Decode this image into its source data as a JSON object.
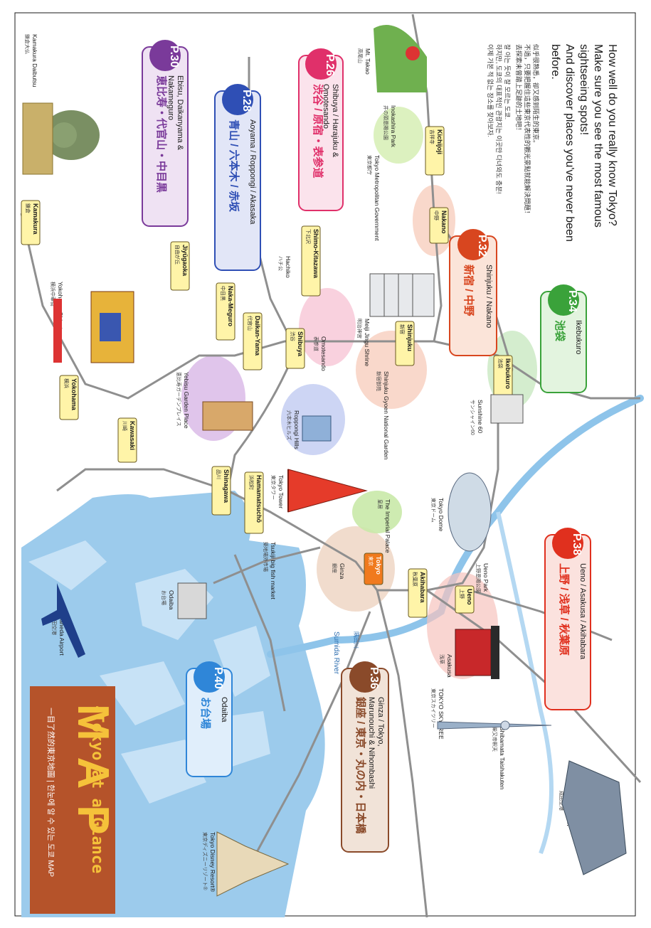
{
  "intro": {
    "lines": [
      "How well do you really know Tokyo?",
      "Make sure you see the most famous",
      "sightseeing spots!",
      "And discover places you've never been",
      "before."
    ],
    "zh_lines": [
      "似乎很熟悉，卻又感到陌生的東京。",
      "不過，只要把握住這些東京代表性的觀光景點就能解決問題！",
      "去探索未曾踏上足跡的土地吧！"
    ],
    "ko_lines": [
      "잘 아는 듯이 잘 모르는 도쿄.",
      "하지만, 도쿄의 대표적인 관광지는 이곳만 다녀와도 충분!",
      "이제 가본 적 없는 장소를 찾아보자."
    ]
  },
  "title_block": {
    "title": "M A P",
    "subtitle": "-Tokyo at a Glance",
    "caption": "一目了然的東京地圖 | 한눈에 알 수 있는 도쿄 MAP",
    "bg_color": "#b5532a",
    "title_color": "#f5c23a"
  },
  "areas": [
    {
      "page": "P.26",
      "en": [
        "Shibuya / Harajuku &",
        "Omotesando"
      ],
      "jp": "渋谷 / 原宿・表参道",
      "color": "#e0306a",
      "fill": "#fbe3ec"
    },
    {
      "page": "P.28",
      "en": [
        "Aoyama / Roppongi / Akasaka"
      ],
      "jp": "青山 / 六本木 / 赤坂",
      "color": "#2f4fb5",
      "fill": "#e2e6f7"
    },
    {
      "page": "P.30",
      "en": [
        "Ebisu, Daikanyama &",
        "Nakameguro"
      ],
      "jp": "恵比寿・代官山・中目黒",
      "color": "#7a3a9a",
      "fill": "#efe2f3"
    },
    {
      "page": "P.32",
      "en": [
        "Shinjuku / Nakano"
      ],
      "jp": "新宿 / 中野",
      "color": "#d8461f",
      "fill": "#fbe4d9"
    },
    {
      "page": "P.34",
      "en": [
        "Ikebukuro"
      ],
      "jp": "池袋",
      "color": "#3aa23a",
      "fill": "#e3f4df"
    },
    {
      "page": "P.38",
      "en": [
        "Ueno / Asakusa / Akihabara"
      ],
      "jp": "上野 / 浅草 / 秋葉原",
      "color": "#e0301e",
      "fill": "#fbe2de"
    },
    {
      "page": "P.36",
      "en": [
        "Ginza / Tokyo,",
        "Marunouchi & Nihombashi"
      ],
      "jp": "銀座 / 東京・丸の内・日本橋",
      "color": "#8a4a2a",
      "fill": "#f1e3d8"
    },
    {
      "page": "P.40",
      "en": [
        "Odaiba"
      ],
      "jp": "お台場",
      "color": "#2f86d8",
      "fill": "#e0eefb"
    }
  ],
  "stations": [
    {
      "en": "Kichijoji",
      "jp": "吉祥寺"
    },
    {
      "en": "Nakano",
      "jp": "中野"
    },
    {
      "en": "Shimo-Kitazawa",
      "jp": "下北沢"
    },
    {
      "en": "Shinjuku",
      "jp": "新宿"
    },
    {
      "en": "Ikebukuro",
      "jp": "池袋"
    },
    {
      "en": "Shibuya",
      "jp": "渋谷"
    },
    {
      "en": "Daikan-Yama",
      "jp": "代官山"
    },
    {
      "en": "Naka-Meguro",
      "jp": "中目黒"
    },
    {
      "en": "Jiyūgaoka",
      "jp": "自由が丘"
    },
    {
      "en": "Kamakura",
      "jp": "鎌倉"
    },
    {
      "en": "Yokohama",
      "jp": "横浜"
    },
    {
      "en": "Kawasaki",
      "jp": "川崎"
    },
    {
      "en": "Shinagawa",
      "jp": "品川"
    },
    {
      "en": "Hamamatsuchō",
      "jp": "浜松町"
    },
    {
      "en": "Tokyo",
      "jp": "東京"
    },
    {
      "en": "Akihabara",
      "jp": "秋葉原"
    },
    {
      "en": "Ueno",
      "jp": "上野"
    }
  ],
  "landmarks": [
    {
      "en": "Mt. Takao",
      "jp": "高尾山"
    },
    {
      "en": "Kamakura Daibutsu",
      "jp": "鎌倉大仏"
    },
    {
      "en": "Inokashira Park",
      "jp": "井の頭恩賜公園"
    },
    {
      "en": "Tokyo Metropolitan Government",
      "jp": "東京都庁"
    },
    {
      "en": "Hachiko",
      "jp": "ハチ公"
    },
    {
      "en": "Meiji Jingu Shrine",
      "jp": "明治神宮"
    },
    {
      "en": "Omotesando",
      "jp": "表参道"
    },
    {
      "en": "Shinjuku Gyoen National Garden",
      "jp": "新宿御苑"
    },
    {
      "en": "Sunshine 60",
      "jp": "サンシャイン60"
    },
    {
      "en": "Yokohama Chinatown",
      "jp": "横浜中華街"
    },
    {
      "en": "Yebisu Garden Place",
      "jp": "恵比寿ガーデンプレイス"
    },
    {
      "en": "Roppongi Hills",
      "jp": "六本木ヒルズ"
    },
    {
      "en": "Tokyo Tower",
      "jp": "東京タワー"
    },
    {
      "en": "The Imperial Palace",
      "jp": "皇居"
    },
    {
      "en": "Tokyo Dome",
      "jp": "東京ドーム"
    },
    {
      "en": "Ueno Park",
      "jp": "上野恩賜公園"
    },
    {
      "en": "Tsukiji big fish market",
      "jp": "築地場外市場"
    },
    {
      "en": "Ginza",
      "jp": "銀座"
    },
    {
      "en": "Haneda Airport",
      "jp": "羽田空港"
    },
    {
      "en": "Odaiba",
      "jp": "お台場"
    },
    {
      "en": "Asakusa",
      "jp": "浅草"
    },
    {
      "en": "TOKYO SKYTREE",
      "jp": "東京スカイツリー"
    },
    {
      "en": "Shibamata Taishakuten",
      "jp": "柴又帝釈天"
    },
    {
      "en": "Narita Airport",
      "jp": "成田空港"
    },
    {
      "en": "Tokyo Disney Resort®",
      "jp": "東京ディズニーリゾート®"
    }
  ],
  "river": {
    "en": "Sumida River",
    "jp": "隅田川"
  },
  "colors": {
    "water": "#8ec4ea",
    "water_light": "#d6eaf8",
    "rail": "#8f8f8f",
    "station_fill": "#fff4a8",
    "tokyo_station_fill": "#f07a1e",
    "page_border": "#1a1a1a"
  }
}
